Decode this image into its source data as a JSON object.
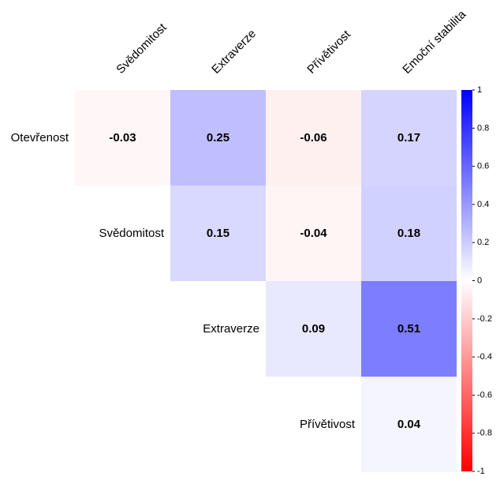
{
  "chart_data": {
    "type": "heatmap",
    "subtype": "correlation-matrix-upper-triangle",
    "row_labels": [
      "Otevřenost",
      "Svědomitost",
      "Extraverze",
      "Přívětivost"
    ],
    "col_labels": [
      "Svědomitost",
      "Extraverze",
      "Přívětivost",
      "Emoční stabilita"
    ],
    "cells": [
      {
        "row": 0,
        "col": 0,
        "value": -0.03,
        "label": "-0.03"
      },
      {
        "row": 0,
        "col": 1,
        "value": 0.25,
        "label": "0.25"
      },
      {
        "row": 0,
        "col": 2,
        "value": -0.06,
        "label": "-0.06"
      },
      {
        "row": 0,
        "col": 3,
        "value": 0.17,
        "label": "0.17"
      },
      {
        "row": 1,
        "col": 1,
        "value": 0.15,
        "label": "0.15"
      },
      {
        "row": 1,
        "col": 2,
        "value": -0.04,
        "label": "-0.04"
      },
      {
        "row": 1,
        "col": 3,
        "value": 0.18,
        "label": "0.18"
      },
      {
        "row": 2,
        "col": 2,
        "value": 0.09,
        "label": "0.09"
      },
      {
        "row": 2,
        "col": 3,
        "value": 0.51,
        "label": "0.51"
      },
      {
        "row": 3,
        "col": 3,
        "value": 0.04,
        "label": "0.04"
      }
    ],
    "colorbar": {
      "range": [
        -1,
        1
      ],
      "ticks": [
        "1",
        "0.8",
        "0.6",
        "0.4",
        "0.2",
        "0",
        "-0.2",
        "-0.4",
        "-0.6",
        "-0.8",
        "-1"
      ],
      "low_color": "#ff0000",
      "mid_color": "#ffffff",
      "high_color": "#0000ff"
    }
  }
}
